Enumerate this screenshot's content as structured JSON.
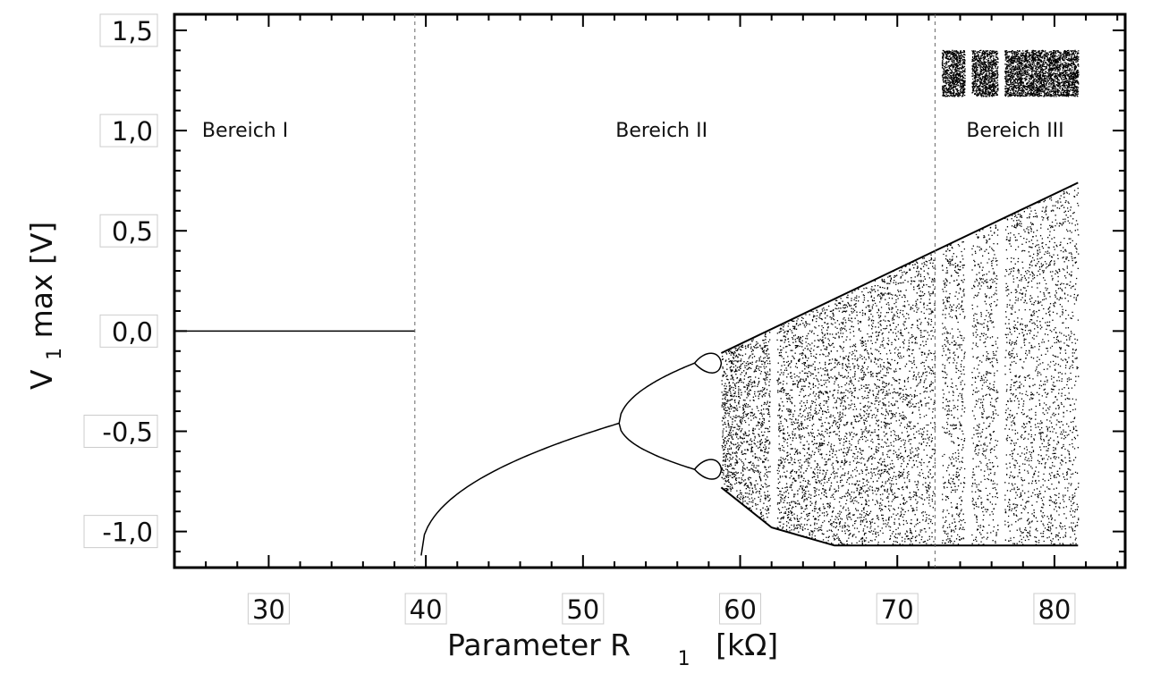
{
  "chart_data": {
    "type": "scatter",
    "title": "",
    "xlabel": "Parameter R",
    "xlabel_sub": "1",
    "xlabel_unit": "[kΩ]",
    "ylabel_main": "V",
    "ylabel_sub": "1",
    "ylabel_rest": " max [V]",
    "xlim": [
      24.0,
      84.5
    ],
    "ylim": [
      -1.18,
      1.58
    ],
    "x_ticks": [
      {
        "value": 30,
        "label": "30"
      },
      {
        "value": 40,
        "label": "40"
      },
      {
        "value": 50,
        "label": "50"
      },
      {
        "value": 60,
        "label": "60"
      },
      {
        "value": 70,
        "label": "70"
      },
      {
        "value": 80,
        "label": "80"
      }
    ],
    "y_ticks": [
      {
        "value": 1.5,
        "label": "1,5"
      },
      {
        "value": 1.0,
        "label": "1,0"
      },
      {
        "value": 0.5,
        "label": "0,5"
      },
      {
        "value": 0.0,
        "label": "0,0"
      },
      {
        "value": -0.5,
        "label": "-0,5"
      },
      {
        "value": -1.0,
        "label": "-1,0"
      }
    ],
    "grid": false,
    "region_boundaries": [
      39.3,
      72.4
    ],
    "regions": [
      {
        "label": "Bereich I",
        "x": 28.5,
        "y": 0.97
      },
      {
        "label": "Bereich II",
        "x": 55.0,
        "y": 0.97
      },
      {
        "label": "Bereich III",
        "x": 77.5,
        "y": 0.97
      }
    ],
    "fixed_point": {
      "x_start": 24.0,
      "x_end": 39.3,
      "y": 0.0
    },
    "branch_start": {
      "x": 39.7,
      "y": -1.12
    },
    "bifurcation_points": [
      {
        "x": 52.3,
        "y": -0.46,
        "description": "period doubling"
      },
      {
        "x": 57.1,
        "y": -0.16,
        "description": "period doubling"
      },
      {
        "x": 57.1,
        "y": -0.69,
        "description": "period doubling"
      }
    ],
    "chaos_onset": 58.8,
    "chaos_end": 81.5,
    "upper_envelope": [
      [
        58.8,
        -0.11
      ],
      [
        72.4,
        0.4
      ],
      [
        81.5,
        0.74
      ]
    ],
    "lower_envelope": [
      [
        58.8,
        -0.78
      ],
      [
        62.0,
        -0.98
      ],
      [
        66.0,
        -1.07
      ],
      [
        81.5,
        -1.07
      ]
    ],
    "windows": [
      62.1,
      72.6,
      74.5,
      76.6
    ],
    "upper_band": {
      "x_start": 72.4,
      "x_end": 81.5,
      "y_low": 1.17,
      "y_high": 1.4
    }
  }
}
